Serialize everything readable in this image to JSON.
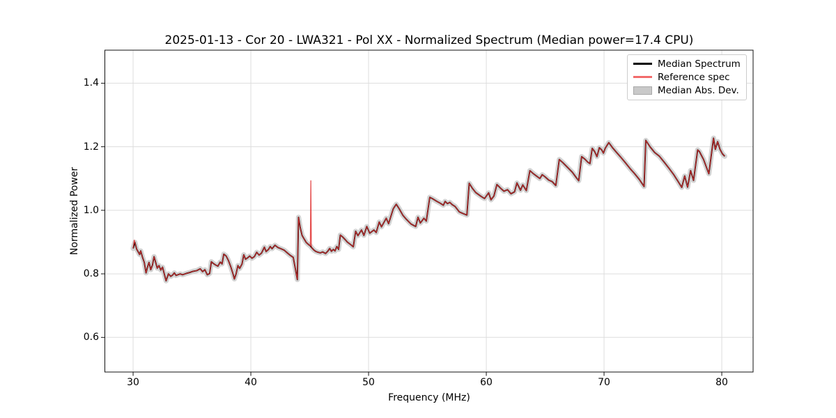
{
  "figure": {
    "background": "#ffffff"
  },
  "chart_data": {
    "type": "line",
    "title": "2025-01-13 - Cor 20 - LWA321 - Pol XX - Normalized Spectrum (Median power=17.4 CPU)",
    "xlabel": "Frequency (MHz)",
    "ylabel": "Normalized Power",
    "xlim": [
      27.6,
      82.66
    ],
    "ylim": [
      0.491,
      1.504
    ],
    "grid": true,
    "grid_color": "#dddddd",
    "spine_color": "#111111",
    "x_ticks": [
      {
        "v": 30,
        "label": "30"
      },
      {
        "v": 40,
        "label": "40"
      },
      {
        "v": 50,
        "label": "50"
      },
      {
        "v": 60,
        "label": "60"
      },
      {
        "v": 70,
        "label": "70"
      },
      {
        "v": 80,
        "label": "80"
      }
    ],
    "y_ticks": [
      {
        "v": 0.6,
        "label": "0.6"
      },
      {
        "v": 0.8,
        "label": "0.8"
      },
      {
        "v": 1.0,
        "label": "1.0"
      },
      {
        "v": 1.2,
        "label": "1.2"
      },
      {
        "v": 1.4,
        "label": "1.4"
      }
    ],
    "legend": {
      "position": "upper right",
      "entries": [
        {
          "label": "Median Spectrum",
          "type": "line",
          "color": "#000000"
        },
        {
          "label": "Reference spec",
          "type": "line",
          "color": "#f26b6b"
        },
        {
          "label": "Median Abs. Dev.",
          "type": "patch",
          "color": "#c9c9c9",
          "edge": "#a8a8a8"
        }
      ]
    },
    "series": [
      {
        "name": "Median Abs. Dev.",
        "type": "band",
        "color": "#c9c9c9",
        "opacity": 0.8,
        "halfwidth": 0.008,
        "follows": "Median Spectrum"
      },
      {
        "name": "Median Spectrum",
        "type": "line",
        "color": "#000000",
        "width": 1.9,
        "opacity": 1,
        "points": [
          [
            30.0,
            0.88
          ],
          [
            30.15,
            0.899
          ],
          [
            30.3,
            0.878
          ],
          [
            30.45,
            0.868
          ],
          [
            30.55,
            0.861
          ],
          [
            30.65,
            0.872
          ],
          [
            30.8,
            0.852
          ],
          [
            30.95,
            0.836
          ],
          [
            31.1,
            0.803
          ],
          [
            31.25,
            0.825
          ],
          [
            31.35,
            0.836
          ],
          [
            31.5,
            0.813
          ],
          [
            31.65,
            0.828
          ],
          [
            31.78,
            0.854
          ],
          [
            31.9,
            0.838
          ],
          [
            32.05,
            0.818
          ],
          [
            32.2,
            0.826
          ],
          [
            32.35,
            0.812
          ],
          [
            32.5,
            0.821
          ],
          [
            32.65,
            0.8
          ],
          [
            32.8,
            0.778
          ],
          [
            33.0,
            0.8
          ],
          [
            33.2,
            0.792
          ],
          [
            33.35,
            0.796
          ],
          [
            33.5,
            0.803
          ],
          [
            33.65,
            0.795
          ],
          [
            33.8,
            0.797
          ],
          [
            34.0,
            0.8
          ],
          [
            34.2,
            0.797
          ],
          [
            34.5,
            0.801
          ],
          [
            34.8,
            0.804
          ],
          [
            35.1,
            0.808
          ],
          [
            35.4,
            0.81
          ],
          [
            35.7,
            0.816
          ],
          [
            35.9,
            0.807
          ],
          [
            36.1,
            0.813
          ],
          [
            36.3,
            0.797
          ],
          [
            36.5,
            0.801
          ],
          [
            36.65,
            0.838
          ],
          [
            36.8,
            0.833
          ],
          [
            37.0,
            0.828
          ],
          [
            37.2,
            0.824
          ],
          [
            37.4,
            0.837
          ],
          [
            37.55,
            0.831
          ],
          [
            37.7,
            0.862
          ],
          [
            37.9,
            0.856
          ],
          [
            38.1,
            0.842
          ],
          [
            38.3,
            0.822
          ],
          [
            38.5,
            0.798
          ],
          [
            38.6,
            0.784
          ],
          [
            38.75,
            0.8
          ],
          [
            38.9,
            0.826
          ],
          [
            39.05,
            0.817
          ],
          [
            39.25,
            0.831
          ],
          [
            39.4,
            0.86
          ],
          [
            39.55,
            0.846
          ],
          [
            39.75,
            0.851
          ],
          [
            39.9,
            0.856
          ],
          [
            40.1,
            0.849
          ],
          [
            40.3,
            0.854
          ],
          [
            40.5,
            0.868
          ],
          [
            40.7,
            0.859
          ],
          [
            40.9,
            0.865
          ],
          [
            41.15,
            0.884
          ],
          [
            41.3,
            0.87
          ],
          [
            41.5,
            0.877
          ],
          [
            41.65,
            0.886
          ],
          [
            41.8,
            0.879
          ],
          [
            42.05,
            0.89
          ],
          [
            42.3,
            0.883
          ],
          [
            42.55,
            0.879
          ],
          [
            42.85,
            0.874
          ],
          [
            43.1,
            0.866
          ],
          [
            43.35,
            0.858
          ],
          [
            43.6,
            0.852
          ],
          [
            43.8,
            0.812
          ],
          [
            43.95,
            0.782
          ],
          [
            44.05,
            0.978
          ],
          [
            44.2,
            0.945
          ],
          [
            44.35,
            0.921
          ],
          [
            44.55,
            0.908
          ],
          [
            44.7,
            0.899
          ],
          [
            44.9,
            0.892
          ],
          [
            45.05,
            0.888
          ],
          [
            45.18,
            0.882
          ],
          [
            45.35,
            0.875
          ],
          [
            45.5,
            0.871
          ],
          [
            45.7,
            0.868
          ],
          [
            45.9,
            0.866
          ],
          [
            46.1,
            0.869
          ],
          [
            46.35,
            0.864
          ],
          [
            46.55,
            0.872
          ],
          [
            46.7,
            0.88
          ],
          [
            46.85,
            0.871
          ],
          [
            47.0,
            0.877
          ],
          [
            47.15,
            0.872
          ],
          [
            47.3,
            0.886
          ],
          [
            47.45,
            0.877
          ],
          [
            47.6,
            0.922
          ],
          [
            47.8,
            0.916
          ],
          [
            48.0,
            0.908
          ],
          [
            48.2,
            0.9
          ],
          [
            48.45,
            0.893
          ],
          [
            48.7,
            0.885
          ],
          [
            48.9,
            0.934
          ],
          [
            49.1,
            0.92
          ],
          [
            49.4,
            0.938
          ],
          [
            49.6,
            0.921
          ],
          [
            49.85,
            0.949
          ],
          [
            50.1,
            0.928
          ],
          [
            50.45,
            0.938
          ],
          [
            50.65,
            0.93
          ],
          [
            50.9,
            0.963
          ],
          [
            51.1,
            0.948
          ],
          [
            51.5,
            0.975
          ],
          [
            51.7,
            0.958
          ],
          [
            51.9,
            0.982
          ],
          [
            52.1,
            1.005
          ],
          [
            52.35,
            1.019
          ],
          [
            52.6,
            1.005
          ],
          [
            52.9,
            0.985
          ],
          [
            53.2,
            0.972
          ],
          [
            53.6,
            0.957
          ],
          [
            54.0,
            0.949
          ],
          [
            54.2,
            0.978
          ],
          [
            54.4,
            0.96
          ],
          [
            54.7,
            0.975
          ],
          [
            54.9,
            0.966
          ],
          [
            55.2,
            1.041
          ],
          [
            55.5,
            1.035
          ],
          [
            55.8,
            1.028
          ],
          [
            56.1,
            1.022
          ],
          [
            56.35,
            1.016
          ],
          [
            56.5,
            1.028
          ],
          [
            56.7,
            1.021
          ],
          [
            56.9,
            1.025
          ],
          [
            57.1,
            1.018
          ],
          [
            57.35,
            1.012
          ],
          [
            57.7,
            0.995
          ],
          [
            58.0,
            0.99
          ],
          [
            58.35,
            0.985
          ],
          [
            58.55,
            1.085
          ],
          [
            58.8,
            1.07
          ],
          [
            59.1,
            1.056
          ],
          [
            59.55,
            1.044
          ],
          [
            59.85,
            1.037
          ],
          [
            60.2,
            1.055
          ],
          [
            60.4,
            1.033
          ],
          [
            60.65,
            1.045
          ],
          [
            60.9,
            1.081
          ],
          [
            61.2,
            1.07
          ],
          [
            61.5,
            1.06
          ],
          [
            61.8,
            1.065
          ],
          [
            62.1,
            1.052
          ],
          [
            62.4,
            1.058
          ],
          [
            62.6,
            1.086
          ],
          [
            62.9,
            1.063
          ],
          [
            63.1,
            1.08
          ],
          [
            63.4,
            1.062
          ],
          [
            63.7,
            1.125
          ],
          [
            64.0,
            1.115
          ],
          [
            64.3,
            1.107
          ],
          [
            64.55,
            1.1
          ],
          [
            64.75,
            1.112
          ],
          [
            65.0,
            1.105
          ],
          [
            65.3,
            1.095
          ],
          [
            65.6,
            1.09
          ],
          [
            65.9,
            1.078
          ],
          [
            66.2,
            1.16
          ],
          [
            66.5,
            1.15
          ],
          [
            66.9,
            1.135
          ],
          [
            67.3,
            1.12
          ],
          [
            67.6,
            1.105
          ],
          [
            67.85,
            1.093
          ],
          [
            68.1,
            1.169
          ],
          [
            68.4,
            1.16
          ],
          [
            68.6,
            1.152
          ],
          [
            68.8,
            1.147
          ],
          [
            69.0,
            1.195
          ],
          [
            69.2,
            1.185
          ],
          [
            69.4,
            1.169
          ],
          [
            69.6,
            1.197
          ],
          [
            69.8,
            1.19
          ],
          [
            69.95,
            1.18
          ],
          [
            70.1,
            1.195
          ],
          [
            70.4,
            1.213
          ],
          [
            70.7,
            1.198
          ],
          [
            71.0,
            1.185
          ],
          [
            71.4,
            1.168
          ],
          [
            71.8,
            1.15
          ],
          [
            72.2,
            1.132
          ],
          [
            72.6,
            1.115
          ],
          [
            73.0,
            1.097
          ],
          [
            73.4,
            1.075
          ],
          [
            73.55,
            1.22
          ],
          [
            73.9,
            1.2
          ],
          [
            74.3,
            1.182
          ],
          [
            74.7,
            1.17
          ],
          [
            75.1,
            1.152
          ],
          [
            75.5,
            1.133
          ],
          [
            75.9,
            1.113
          ],
          [
            76.3,
            1.09
          ],
          [
            76.6,
            1.072
          ],
          [
            76.85,
            1.108
          ],
          [
            77.1,
            1.073
          ],
          [
            77.35,
            1.125
          ],
          [
            77.6,
            1.094
          ],
          [
            77.95,
            1.19
          ],
          [
            78.1,
            1.185
          ],
          [
            78.45,
            1.16
          ],
          [
            78.9,
            1.115
          ],
          [
            79.1,
            1.17
          ],
          [
            79.3,
            1.227
          ],
          [
            79.45,
            1.192
          ],
          [
            79.65,
            1.216
          ],
          [
            79.85,
            1.192
          ],
          [
            80.05,
            1.178
          ],
          [
            80.25,
            1.17
          ]
        ]
      },
      {
        "name": "Reference spec",
        "type": "line",
        "color": "#e03131",
        "width": 1.3,
        "opacity": 0.85,
        "base": "Median Spectrum",
        "extra_points": [
          [
            30.1,
            0.906
          ],
          [
            45.1,
            1.093
          ],
          [
            45.14,
            0.888
          ]
        ]
      }
    ]
  }
}
